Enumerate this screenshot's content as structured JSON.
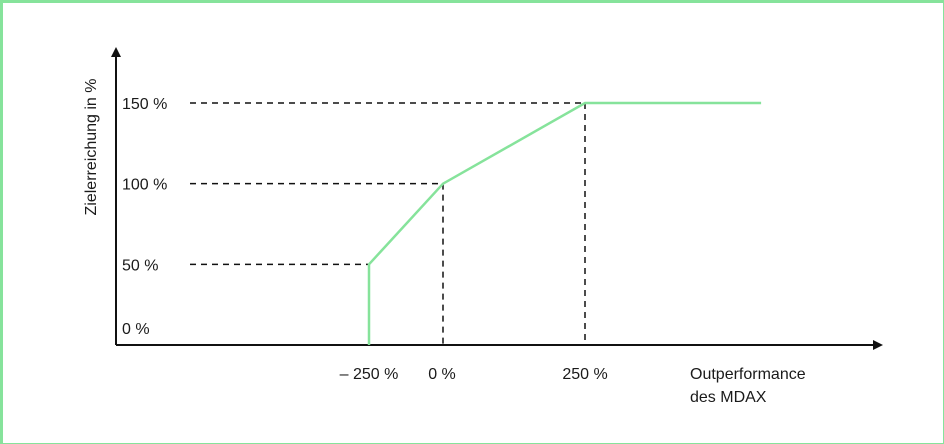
{
  "chart_data": {
    "type": "line",
    "xlabel": "Outperformance des MDAX",
    "ylabel": "Zielerreichung in %",
    "x_ticks": [
      {
        "value": -250,
        "label": "– 250 %"
      },
      {
        "value": 0,
        "label": "0 %"
      },
      {
        "value": 250,
        "label": "250 %"
      }
    ],
    "y_ticks": [
      {
        "value": 0,
        "label": "0 %"
      },
      {
        "value": 50,
        "label": "50 %"
      },
      {
        "value": 100,
        "label": "100 %"
      },
      {
        "value": 150,
        "label": "150 %"
      }
    ],
    "series": [
      {
        "color": "#86e39b",
        "points": [
          {
            "x": -250,
            "y": 0
          },
          {
            "x": -250,
            "y": 50
          },
          {
            "x": 0,
            "y": 100
          },
          {
            "x": 250,
            "y": 150
          },
          {
            "x": 560,
            "y": 150
          }
        ]
      }
    ],
    "xlim": [
      -1100,
      800
    ],
    "ylim": [
      -10,
      165
    ],
    "grid": false,
    "reference_lines": "dashed"
  },
  "colors": {
    "accent": "#86e39b",
    "axis": "#111111",
    "text": "#1a1a1a"
  }
}
